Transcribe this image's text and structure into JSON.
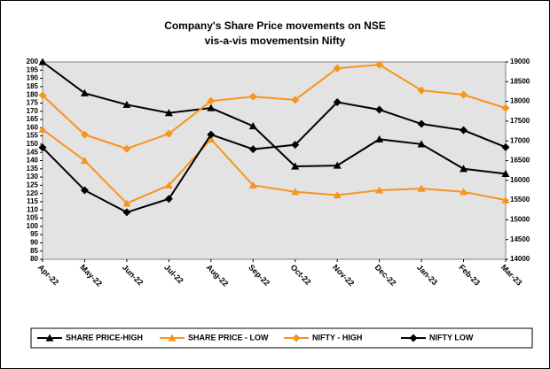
{
  "chart_data": {
    "type": "line",
    "title": [
      "Company's Share Price movements on NSE",
      "vis-a-vis movementsin Nifty"
    ],
    "categories": [
      "Apr-22",
      "May-22",
      "Jun-22",
      "Jul-22",
      "Aug-22",
      "Sep-22",
      "Oct-22",
      "Nov-22",
      "Dec-22",
      "Jan-23",
      "Feb-23",
      "Mar-23"
    ],
    "series": [
      {
        "name": "SHARE PRICE-HIGH",
        "color": "#000000",
        "marker": "triangle",
        "axis": "y",
        "values": [
          200,
          181,
          174,
          169,
          172,
          161,
          136.5,
          137,
          153,
          150,
          135,
          132
        ]
      },
      {
        "name": "SHARE PRICE - LOW",
        "color": "#f7941d",
        "marker": "triangle",
        "axis": "y",
        "values": [
          159,
          140,
          114,
          125,
          153,
          125,
          121,
          119,
          122,
          123,
          121,
          116
        ]
      },
      {
        "name": "NIFTY  - HIGH",
        "color": "#f7941d",
        "marker": "diamond",
        "axis": "y2",
        "values": [
          18150,
          17160,
          16800,
          17180,
          18010,
          18120,
          18040,
          18840,
          18930,
          18280,
          18170,
          17830
        ]
      },
      {
        "name": "NIFTY LOW",
        "color": "#000000",
        "marker": "diamond",
        "axis": "y2",
        "values": [
          16830,
          15750,
          15190,
          15530,
          17160,
          16790,
          16900,
          17980,
          17790,
          17430,
          17270,
          16840
        ]
      }
    ],
    "ylim": [
      80,
      200
    ],
    "yticks": [
      80,
      85,
      90,
      95,
      100,
      105,
      110,
      115,
      120,
      125,
      130,
      135,
      140,
      145,
      150,
      155,
      160,
      165,
      170,
      175,
      180,
      185,
      190,
      195,
      200
    ],
    "y2lim": [
      14000,
      19000
    ],
    "y2ticks": [
      14000,
      14500,
      15000,
      15500,
      16000,
      16500,
      17000,
      17500,
      18000,
      18500,
      19000
    ],
    "legend": "bottom"
  }
}
